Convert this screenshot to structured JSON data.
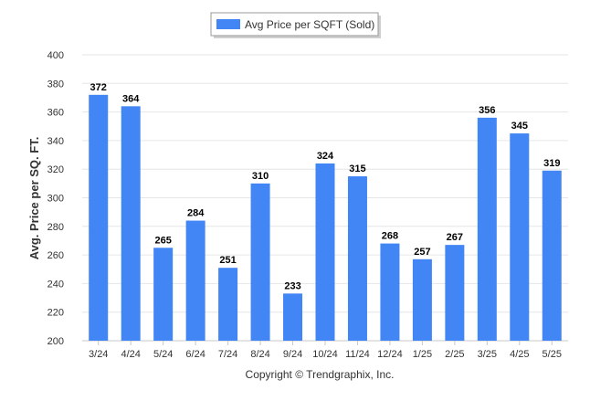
{
  "chart_data": {
    "type": "bar",
    "categories": [
      "3/24",
      "4/24",
      "5/24",
      "6/24",
      "7/24",
      "8/24",
      "9/24",
      "10/24",
      "11/24",
      "12/24",
      "1/25",
      "2/25",
      "3/25",
      "4/25",
      "5/25"
    ],
    "series": [
      {
        "name": "Avg Price per SQFT (Sold)",
        "values": [
          372,
          364,
          265,
          284,
          251,
          310,
          233,
          324,
          315,
          268,
          257,
          267,
          356,
          345,
          319
        ]
      }
    ],
    "ylabel": "Avg. Price per SQ. FT.",
    "xlabel": "",
    "ylim": [
      200,
      400
    ],
    "yticks": [
      200,
      220,
      240,
      260,
      280,
      300,
      320,
      340,
      360,
      380,
      400
    ],
    "grid": true,
    "legend_position": "top-center",
    "credit": "Copyright © Trendgraphix, Inc.",
    "colors": {
      "bar": "#4285f4"
    }
  }
}
